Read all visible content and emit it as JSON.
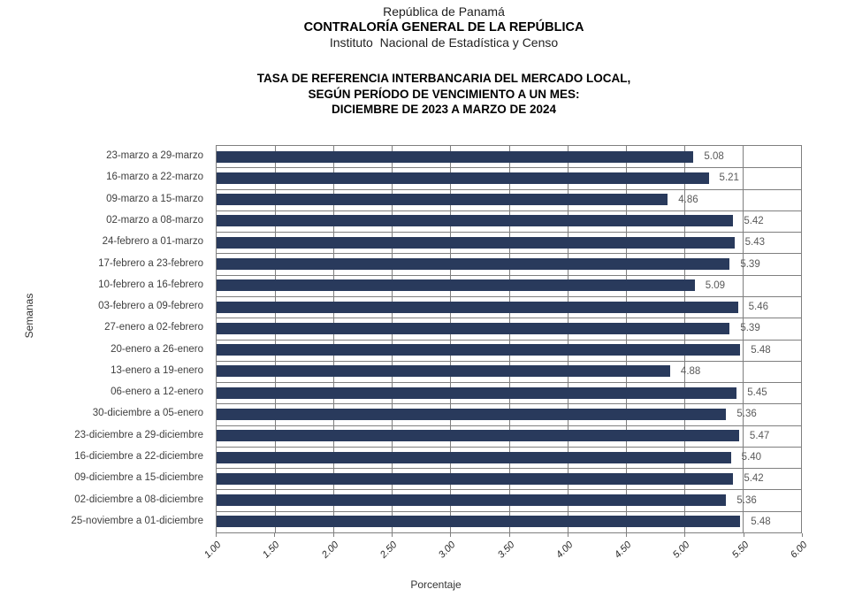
{
  "header": {
    "line1": "República de Panamá",
    "line2": "CONTRALORÍA GENERAL DE LA REPÚBLICA",
    "line3": "Instituto  Nacional de Estadística y Censo"
  },
  "chart_title": {
    "line1": "TASA DE REFERENCIA INTERBANCARIA DEL MERCADO LOCAL,",
    "line2": "SEGÚN PERÍODO DE VENCIMIENTO A UN MES:",
    "line3": "DICIEMBRE DE 2023 A MARZO DE 2024"
  },
  "chart_data": {
    "type": "bar",
    "orientation": "horizontal",
    "title": "TASA DE REFERENCIA INTERBANCARIA DEL MERCADO LOCAL, SEGÚN PERÍODO DE VENCIMIENTO A UN MES: DICIEMBRE DE 2023 A MARZO DE 2024",
    "xlabel": "Porcentaje",
    "ylabel": "Semanas",
    "xlim": [
      1.0,
      6.0
    ],
    "x_ticks": [
      "1.00",
      "1.50",
      "2.00",
      "2.50",
      "3.00",
      "3.50",
      "4.00",
      "4.50",
      "5.00",
      "5.50",
      "6.00"
    ],
    "grid": true,
    "legend": false,
    "colors": {
      "bar": "#293A5C",
      "gridline": "#7F7F7F",
      "value_label": "#595959",
      "category_label": "#404040"
    },
    "categories": [
      "23-marzo a 29-marzo",
      "16-marzo a 22-marzo",
      "09-marzo a 15-marzo",
      "02-marzo a 08-marzo",
      "24-febrero a 01-marzo",
      "17-febrero a 23-febrero",
      "10-febrero a 16-febrero",
      "03-febrero a 09-febrero",
      "27-enero a 02-febrero",
      "20-enero a 26-enero",
      "13-enero a 19-enero",
      "06-enero a 12-enero",
      "30-diciembre a 05-enero",
      "23-diciembre a 29-diciembre",
      "16-diciembre a 22-diciembre",
      "09-diciembre a 15-diciembre",
      "02-diciembre a 08-diciembre",
      "25-noviembre a 01-diciembre"
    ],
    "values": [
      5.08,
      5.21,
      4.86,
      5.42,
      5.43,
      5.39,
      5.09,
      5.46,
      5.39,
      5.48,
      4.88,
      5.45,
      5.36,
      5.47,
      5.4,
      5.42,
      5.36,
      5.48
    ],
    "value_labels": [
      "5.08",
      "5.21",
      "4.86",
      "5.42",
      "5.43",
      "5.39",
      "5.09",
      "5.46",
      "5.39",
      "5.48",
      "4.88",
      "5.45",
      "5.36",
      "5.47",
      "5.40",
      "5.42",
      "5.36",
      "5.48"
    ]
  }
}
